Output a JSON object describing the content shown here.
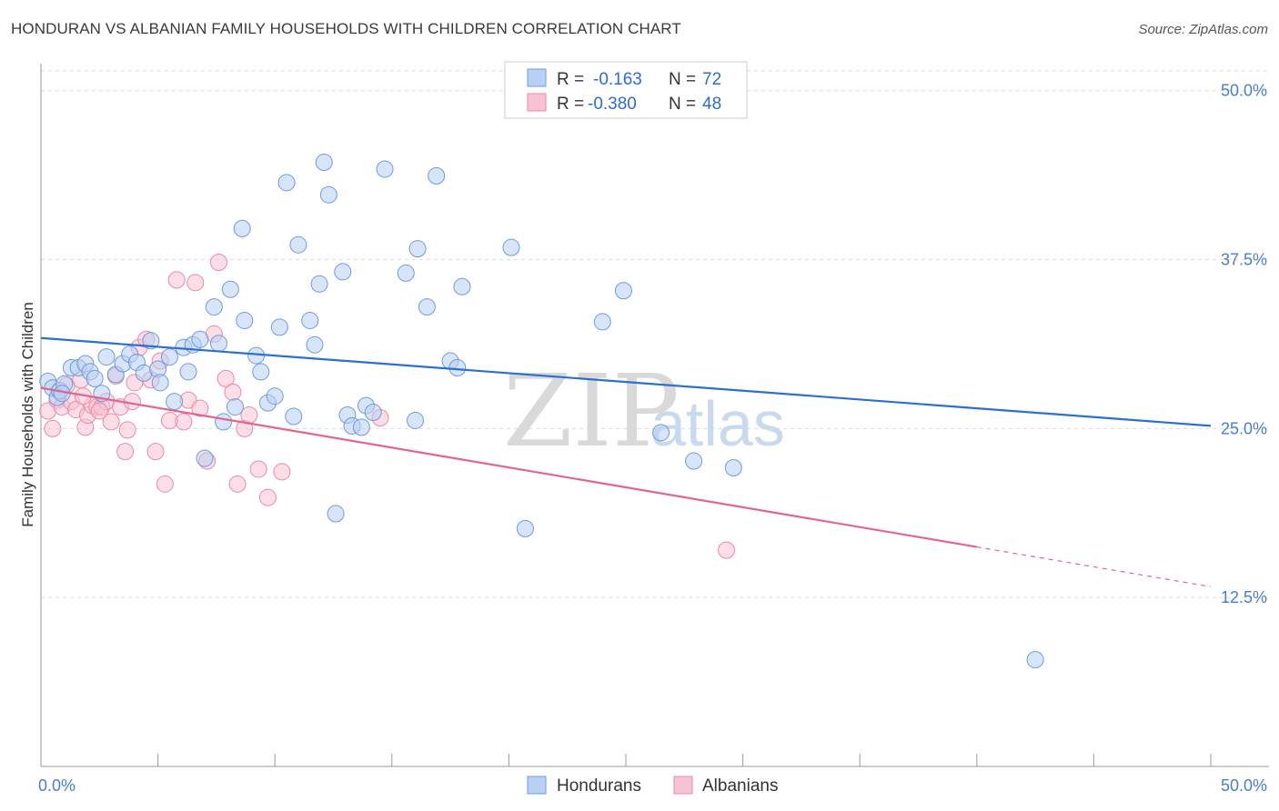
{
  "title": "HONDURAN VS ALBANIAN FAMILY HOUSEHOLDS WITH CHILDREN CORRELATION CHART",
  "source": "Source: ZipAtlas.com",
  "watermark": {
    "zip": "ZIP",
    "atlas": "atlas"
  },
  "colors": {
    "blue_fill": "#b8d0f3",
    "blue_stroke": "#6f9bdc",
    "blue_line": "#2b6fd1",
    "pink_fill": "#f7c2d2",
    "pink_stroke": "#e98aa9",
    "pink_line": "#e0668f",
    "grid": "#dcdcdc",
    "axis_text": "#4a7ec9"
  },
  "legend": {
    "rows": [
      {
        "r_label": "R =",
        "r_value": "-0.163",
        "n_label": "N =",
        "n_value": "72"
      },
      {
        "r_label": "R =",
        "r_value": "-0.380",
        "n_label": "N =",
        "n_value": "48"
      }
    ]
  },
  "bottom_legend": {
    "hondurans": "Hondurans",
    "albanians": "Albanians"
  },
  "chart_data": {
    "type": "scatter",
    "title": "HONDURAN VS ALBANIAN FAMILY HOUSEHOLDS WITH CHILDREN CORRELATION CHART",
    "xlabel": "",
    "ylabel": "Family Households with Children",
    "xlim": [
      0,
      50
    ],
    "ylim": [
      0,
      52
    ],
    "x_tick_labels": [
      "0.0%",
      "50.0%"
    ],
    "y_ticks": [
      12.5,
      25.0,
      37.5,
      50.0
    ],
    "y_tick_labels": [
      "12.5%",
      "25.0%",
      "37.5%",
      "50.0%"
    ],
    "grid": true,
    "series": [
      {
        "name": "Hondurans",
        "color": "blue",
        "trend": {
          "x0": 0,
          "y0": 31.7,
          "x1": 50,
          "y1": 25.2,
          "dashed_from": null
        },
        "points": [
          [
            0.3,
            28.5
          ],
          [
            0.5,
            28.0
          ],
          [
            0.7,
            27.3
          ],
          [
            0.8,
            27.8
          ],
          [
            1.0,
            28.3
          ],
          [
            1.3,
            29.5
          ],
          [
            1.6,
            29.5
          ],
          [
            1.9,
            29.8
          ],
          [
            2.1,
            29.2
          ],
          [
            2.3,
            28.7
          ],
          [
            2.6,
            27.6
          ],
          [
            2.8,
            30.3
          ],
          [
            3.2,
            29.0
          ],
          [
            3.5,
            29.8
          ],
          [
            3.8,
            30.5
          ],
          [
            4.1,
            29.9
          ],
          [
            4.4,
            29.1
          ],
          [
            4.7,
            31.5
          ],
          [
            5.0,
            29.4
          ],
          [
            5.1,
            28.4
          ],
          [
            5.5,
            30.3
          ],
          [
            5.7,
            27.0
          ],
          [
            6.1,
            31.0
          ],
          [
            6.3,
            29.2
          ],
          [
            6.5,
            31.2
          ],
          [
            6.8,
            31.6
          ],
          [
            7.0,
            22.8
          ],
          [
            7.4,
            34.0
          ],
          [
            7.6,
            31.3
          ],
          [
            7.8,
            25.5
          ],
          [
            8.1,
            35.3
          ],
          [
            8.3,
            26.6
          ],
          [
            8.6,
            39.8
          ],
          [
            8.7,
            33.0
          ],
          [
            9.2,
            30.4
          ],
          [
            9.4,
            29.2
          ],
          [
            9.7,
            26.9
          ],
          [
            10.0,
            27.4
          ],
          [
            10.2,
            32.5
          ],
          [
            10.5,
            43.2
          ],
          [
            10.8,
            25.9
          ],
          [
            11.0,
            38.6
          ],
          [
            11.5,
            33.0
          ],
          [
            11.7,
            31.2
          ],
          [
            11.9,
            35.7
          ],
          [
            12.1,
            44.7
          ],
          [
            12.3,
            42.3
          ],
          [
            12.6,
            18.7
          ],
          [
            12.9,
            36.6
          ],
          [
            13.1,
            26.0
          ],
          [
            13.3,
            25.2
          ],
          [
            13.7,
            25.1
          ],
          [
            13.9,
            26.7
          ],
          [
            14.2,
            26.2
          ],
          [
            14.7,
            44.2
          ],
          [
            15.6,
            36.5
          ],
          [
            16.0,
            25.6
          ],
          [
            16.1,
            38.3
          ],
          [
            16.5,
            34.0
          ],
          [
            16.9,
            43.7
          ],
          [
            17.5,
            30.0
          ],
          [
            17.8,
            29.5
          ],
          [
            18.0,
            35.5
          ],
          [
            20.1,
            38.4
          ],
          [
            20.7,
            17.6
          ],
          [
            24.0,
            32.9
          ],
          [
            24.9,
            35.2
          ],
          [
            26.5,
            24.7
          ],
          [
            27.9,
            22.6
          ],
          [
            29.6,
            22.1
          ],
          [
            42.5,
            7.9
          ],
          [
            0.9,
            27.6
          ]
        ]
      },
      {
        "name": "Albanians",
        "color": "pink",
        "trend": {
          "x0": 0,
          "y0": 28.0,
          "x1": 50,
          "y1": 13.3,
          "dashed_from": 40.0
        },
        "points": [
          [
            0.3,
            26.3
          ],
          [
            0.5,
            25.0
          ],
          [
            0.7,
            27.1
          ],
          [
            0.9,
            26.6
          ],
          [
            1.1,
            28.2
          ],
          [
            1.3,
            27.0
          ],
          [
            1.5,
            26.4
          ],
          [
            1.7,
            28.6
          ],
          [
            1.9,
            25.1
          ],
          [
            2.0,
            26.0
          ],
          [
            2.2,
            26.7
          ],
          [
            2.4,
            26.6
          ],
          [
            2.6,
            26.6
          ],
          [
            2.8,
            27.0
          ],
          [
            3.0,
            25.5
          ],
          [
            3.2,
            28.9
          ],
          [
            3.4,
            26.6
          ],
          [
            3.6,
            23.3
          ],
          [
            3.7,
            24.9
          ],
          [
            3.9,
            27.0
          ],
          [
            4.2,
            31.0
          ],
          [
            4.5,
            31.6
          ],
          [
            4.7,
            28.6
          ],
          [
            4.9,
            23.3
          ],
          [
            5.1,
            30.0
          ],
          [
            5.3,
            20.9
          ],
          [
            5.5,
            25.6
          ],
          [
            5.8,
            36.0
          ],
          [
            6.1,
            25.5
          ],
          [
            6.3,
            27.1
          ],
          [
            6.6,
            35.8
          ],
          [
            6.8,
            26.5
          ],
          [
            7.1,
            22.6
          ],
          [
            7.4,
            32.0
          ],
          [
            7.6,
            37.3
          ],
          [
            7.9,
            28.7
          ],
          [
            8.2,
            27.7
          ],
          [
            8.4,
            20.9
          ],
          [
            8.7,
            25.0
          ],
          [
            8.9,
            26.0
          ],
          [
            9.3,
            22.0
          ],
          [
            9.7,
            19.9
          ],
          [
            10.3,
            21.8
          ],
          [
            14.5,
            25.8
          ],
          [
            29.3,
            16.0
          ],
          [
            1.8,
            27.4
          ],
          [
            2.5,
            26.3
          ],
          [
            4.0,
            28.4
          ]
        ]
      }
    ]
  }
}
